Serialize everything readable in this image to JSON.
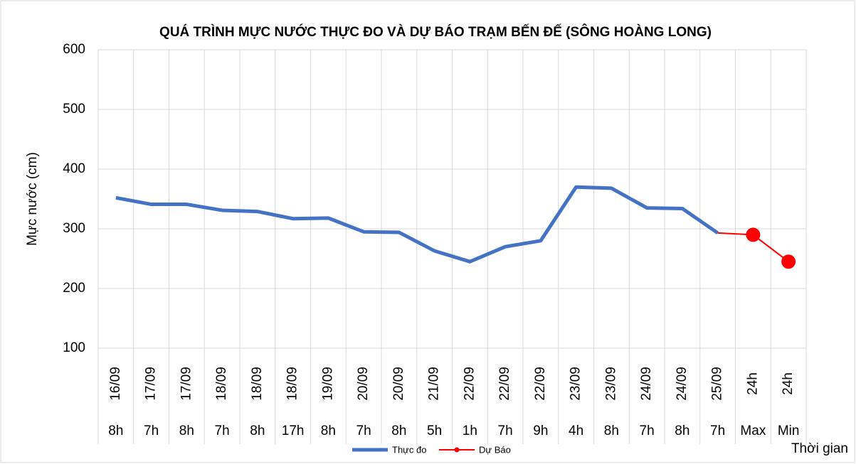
{
  "chart_data": {
    "type": "line",
    "title": "QUÁ TRÌNH MỰC NƯỚC THỰC ĐO VÀ DỰ BÁO TRẠM BẾN ĐẾ (SÔNG HOÀNG LONG)",
    "y_label": "Mực nước (cm)",
    "x_label": "Thời gian",
    "categories": [
      [
        "16/09",
        "8h"
      ],
      [
        "17/09",
        "7h"
      ],
      [
        "17/09",
        "8h"
      ],
      [
        "18/09",
        "7h"
      ],
      [
        "18/09",
        "8h"
      ],
      [
        "18/09",
        "17h"
      ],
      [
        "19/09",
        "8h"
      ],
      [
        "20/09",
        "7h"
      ],
      [
        "20/09",
        "8h"
      ],
      [
        "21/09",
        "5h"
      ],
      [
        "22/09",
        "1h"
      ],
      [
        "22/09",
        "7h"
      ],
      [
        "22/09",
        "9h"
      ],
      [
        "23/09",
        "4h"
      ],
      [
        "23/09",
        "8h"
      ],
      [
        "24/09",
        "7h"
      ],
      [
        "24/09",
        "8h"
      ],
      [
        "25/09",
        "7h"
      ],
      [
        "24h",
        "Max"
      ],
      [
        "24h",
        "Min"
      ]
    ],
    "series": [
      {
        "name": "Thực đo",
        "color": "#4472c4",
        "values": [
          352,
          341,
          341,
          331,
          329,
          317,
          318,
          295,
          294,
          263,
          245,
          270,
          280,
          370,
          368,
          335,
          334,
          293,
          null,
          null
        ]
      },
      {
        "name": "Dự Báo",
        "color": "#ff0000",
        "values": [
          null,
          null,
          null,
          null,
          null,
          null,
          null,
          null,
          null,
          null,
          null,
          null,
          null,
          null,
          null,
          null,
          null,
          293,
          290,
          245
        ]
      }
    ],
    "ylim": [
      100,
      600
    ],
    "yticks": [
      100,
      200,
      300,
      400,
      500,
      600
    ],
    "grid": true,
    "legend": "bottom"
  }
}
